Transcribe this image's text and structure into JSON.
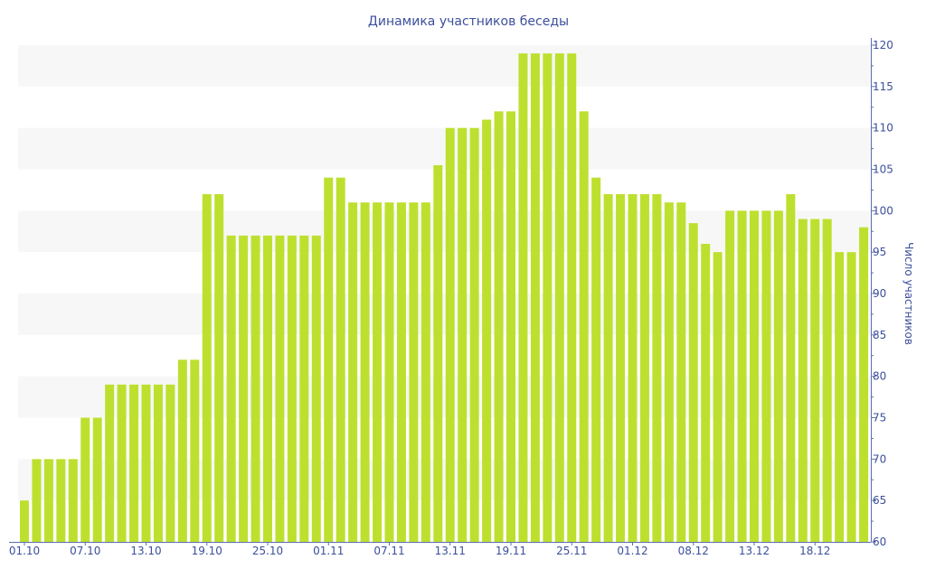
{
  "chart_data": {
    "type": "bar",
    "title": "Динамика участников беседы",
    "xlabel": "",
    "ylabel": "Число участников",
    "ylim": [
      60,
      120
    ],
    "y_ticks": [
      60,
      65,
      70,
      75,
      80,
      85,
      90,
      95,
      100,
      105,
      110,
      115,
      120
    ],
    "y_axis_side": "right",
    "grid": "alternating horizontal bands",
    "legend": "none",
    "bar_color": "#bde02f",
    "x_tick_labels": [
      {
        "index": 0,
        "label": "01.10"
      },
      {
        "index": 5,
        "label": "07.10"
      },
      {
        "index": 10,
        "label": "13.10"
      },
      {
        "index": 15,
        "label": "19.10"
      },
      {
        "index": 20,
        "label": "25.10"
      },
      {
        "index": 25,
        "label": "01.11"
      },
      {
        "index": 30,
        "label": "07.11"
      },
      {
        "index": 35,
        "label": "13.11"
      },
      {
        "index": 40,
        "label": "19.11"
      },
      {
        "index": 45,
        "label": "25.11"
      },
      {
        "index": 50,
        "label": "01.12"
      },
      {
        "index": 55,
        "label": "08.12"
      },
      {
        "index": 60,
        "label": "13.12"
      },
      {
        "index": 65,
        "label": "18.12"
      }
    ],
    "values": [
      65,
      70,
      70,
      70,
      70,
      75,
      75,
      79,
      79,
      79,
      79,
      79,
      79,
      82,
      82,
      102,
      102,
      97,
      97,
      97,
      97,
      97,
      97,
      97,
      97,
      104,
      104,
      101,
      101,
      101,
      101,
      101,
      101,
      101,
      105.5,
      110,
      110,
      110,
      111,
      112,
      112,
      119,
      119,
      119,
      119,
      119,
      112,
      104,
      102,
      102,
      102,
      102,
      102,
      101,
      101,
      98.5,
      96,
      95,
      100,
      100,
      100,
      100,
      100,
      102,
      99,
      99,
      99,
      95,
      95,
      98
    ]
  }
}
